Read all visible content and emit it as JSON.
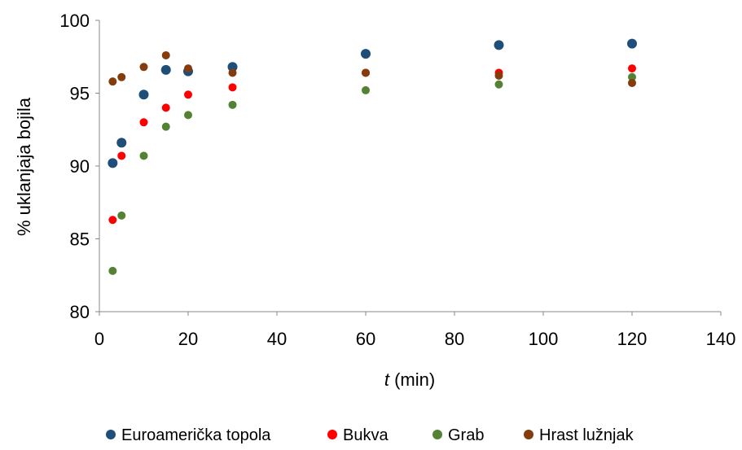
{
  "chart_data": {
    "type": "scatter",
    "xlabel_var": "t",
    "xlabel_unit": " (min)",
    "ylabel": "% uklanjaja bojila",
    "xlim": [
      0,
      140
    ],
    "ylim": [
      80,
      100
    ],
    "xticks": [
      0,
      20,
      40,
      60,
      80,
      100,
      120,
      140
    ],
    "yticks": [
      80,
      85,
      90,
      95,
      100
    ],
    "grid": false,
    "legend_position": "bottom",
    "series": [
      {
        "name": "Euroamerička topola",
        "color": "#1f4e79",
        "points": [
          [
            3,
            90.2
          ],
          [
            5,
            91.6
          ],
          [
            10,
            94.9
          ],
          [
            15,
            96.6
          ],
          [
            20,
            96.5
          ],
          [
            30,
            96.8
          ],
          [
            60,
            97.7
          ],
          [
            90,
            98.3
          ],
          [
            120,
            98.4
          ]
        ]
      },
      {
        "name": "Bukva",
        "color": "#ff0000",
        "points": [
          [
            3,
            86.3
          ],
          [
            5,
            90.7
          ],
          [
            10,
            93.0
          ],
          [
            15,
            94.0
          ],
          [
            20,
            94.9
          ],
          [
            30,
            95.4
          ],
          [
            60,
            96.4
          ],
          [
            90,
            96.4
          ],
          [
            120,
            96.7
          ]
        ]
      },
      {
        "name": "Grab",
        "color": "#548235",
        "points": [
          [
            3,
            82.8
          ],
          [
            5,
            86.6
          ],
          [
            10,
            90.7
          ],
          [
            15,
            92.7
          ],
          [
            20,
            93.5
          ],
          [
            30,
            94.2
          ],
          [
            60,
            95.2
          ],
          [
            90,
            95.6
          ],
          [
            120,
            96.1
          ]
        ]
      },
      {
        "name": "Hrast lužnjak",
        "color": "#843c0c",
        "points": [
          [
            3,
            95.8
          ],
          [
            5,
            96.1
          ],
          [
            10,
            96.8
          ],
          [
            15,
            97.6
          ],
          [
            20,
            96.7
          ],
          [
            30,
            96.4
          ],
          [
            60,
            96.4
          ],
          [
            90,
            96.2
          ],
          [
            120,
            95.7
          ]
        ]
      }
    ]
  }
}
